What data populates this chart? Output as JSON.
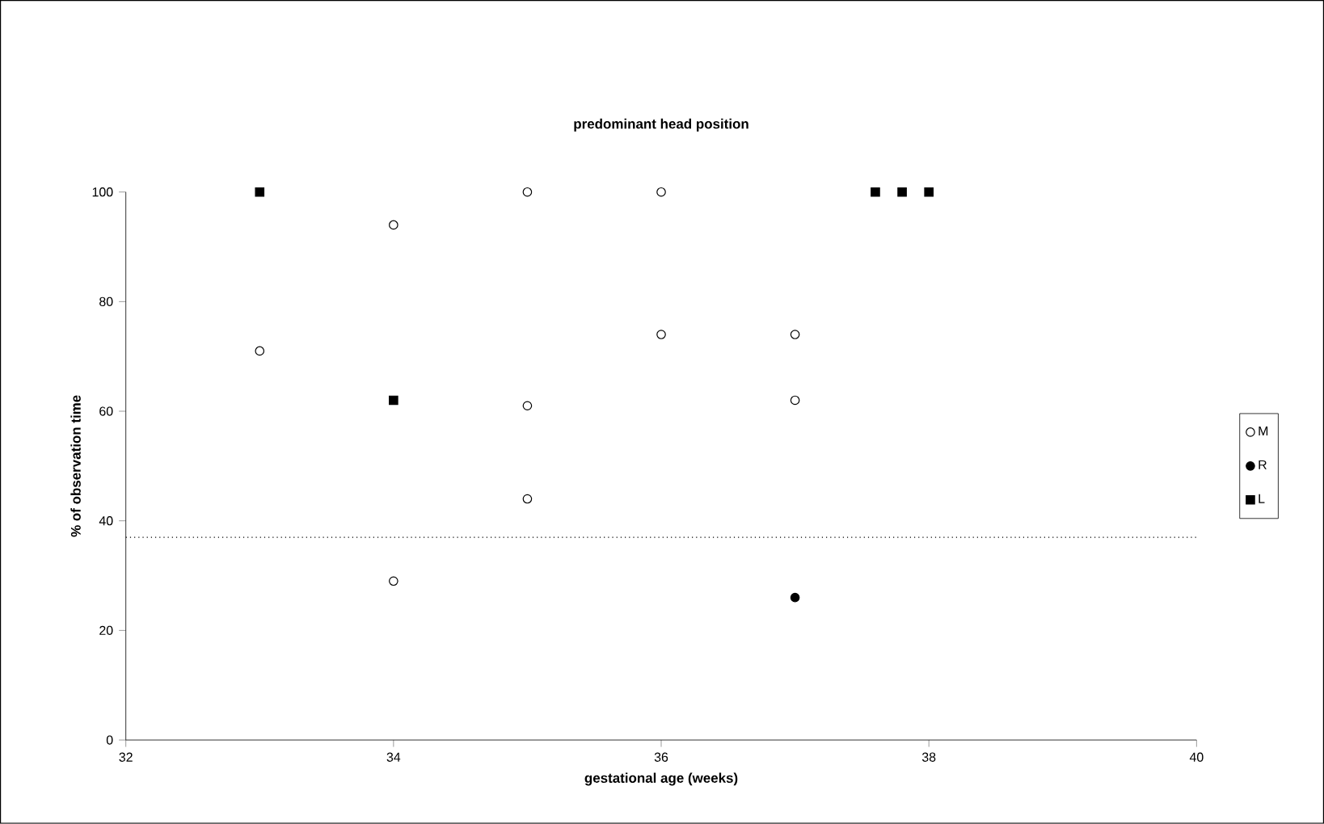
{
  "chart_data": {
    "type": "scatter",
    "title": "predominant head position",
    "xlabel": "gestational age (weeks)",
    "ylabel": "% of observation time",
    "xlim": [
      32,
      40
    ],
    "xticks": [
      32,
      34,
      36,
      38,
      40
    ],
    "ylim": [
      0,
      100
    ],
    "yticks": [
      0,
      20,
      40,
      60,
      80,
      100
    ],
    "series": [
      {
        "name": "M",
        "color": "#ffffff",
        "marker": "circle",
        "x": [
          33,
          34,
          34,
          35,
          35,
          35,
          36,
          36,
          37,
          37
        ],
        "values": [
          71,
          94,
          29,
          100,
          61,
          44,
          100,
          74,
          74,
          62
        ]
      },
      {
        "name": "R",
        "color": "#000000",
        "marker": "circle",
        "x": [
          37
        ],
        "values": [
          26
        ]
      },
      {
        "name": "L",
        "color": "#000000",
        "marker": "square",
        "x": [
          33,
          34,
          37.6,
          37.8,
          38.0
        ],
        "values": [
          100,
          62,
          100,
          100,
          100
        ]
      }
    ],
    "ref_lines": [
      {
        "axis": "y",
        "value": 37,
        "line_style": "dotted",
        "color": "#000000"
      }
    ],
    "grid": false,
    "legend": "right"
  }
}
